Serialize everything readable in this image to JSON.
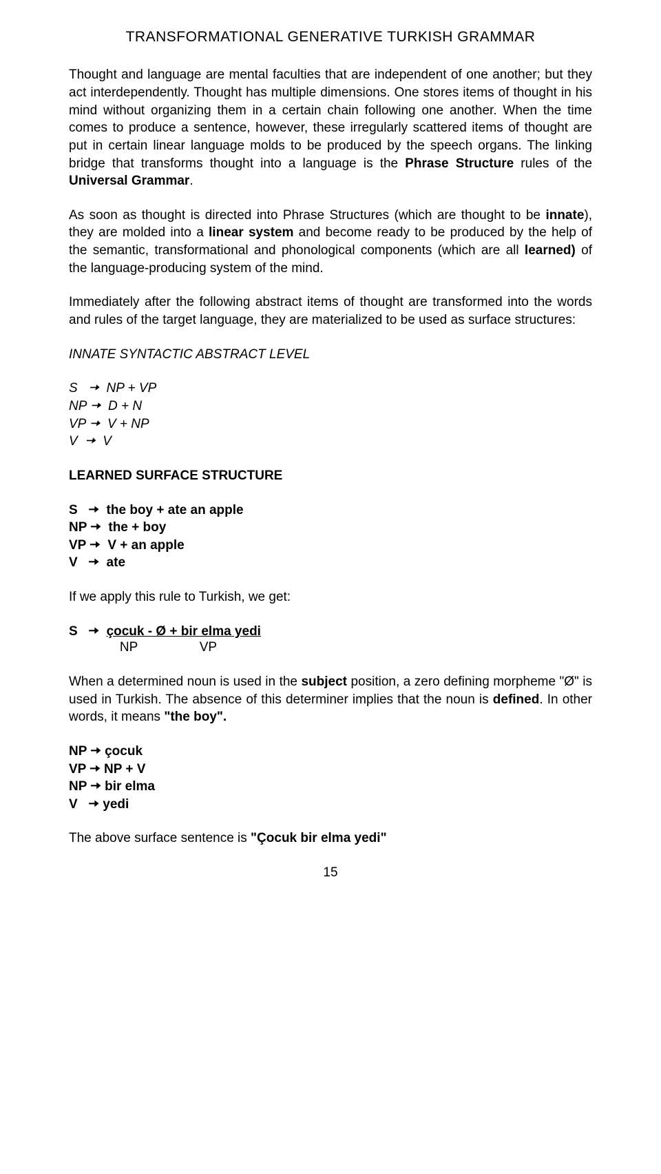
{
  "title": "TRANSFORMATIONAL GENERATIVE TURKISH GRAMMAR",
  "para1_a": "Thought and language are mental faculties that are independent of one another; but they act interdependently. Thought has multiple dimensions. One stores items of thought in his mind without organizing them in a certain chain following one another. When the time comes to produce a sentence, however, these irregularly scattered items of thought are put in certain linear language molds to be produced by the speech organs. The linking bridge that transforms thought into a language is the ",
  "para1_b": "Phrase Structure",
  "para1_c": " rules of the ",
  "para1_d": "Universal Grammar",
  "para1_e": ".",
  "para2_a": "As soon as thought is directed into Phrase Structures (which are thought to be ",
  "para2_b": "innate",
  "para2_c": "), they are molded into a ",
  "para2_d": "linear system",
  "para2_e": " and become ready to be produced by the help of the semantic, transformational and phonological components (which are all ",
  "para2_f": "learned)",
  "para2_g": " of the language-producing system of the mind.",
  "para3": "Immediately after the following abstract items of thought are transformed into the words and rules of the target language, they are materialized to be used as surface structures:",
  "innate_head": "INNATE SYNTACTIC ABSTRACT LEVEL",
  "innate_rules": {
    "r1": "S   🠆  NP + VP",
    "r2": "NP 🠆  D + N",
    "r3": "VP 🠆  V + NP",
    "r4": "V  🠆  V"
  },
  "learned_head": "LEARNED SURFACE STRUCTURE",
  "learned_rules": {
    "r1": "S   🠆  the boy + ate an apple",
    "r2": "NP 🠆  the + boy",
    "r3": "VP 🠆  V + an apple",
    "r4": "V   🠆  ate"
  },
  "apply_line": "If we apply this rule to Turkish, we get:",
  "turkish_rule_prefix": "S   🠆  ",
  "turkish_rule_underlined": "çocuk - Ø + bir elma yedi",
  "turkish_sub": "              NP                 VP",
  "para4_a": "When a determined noun is used in the ",
  "para4_b": "subject",
  "para4_c": " position, a zero  defining morpheme \"Ø\" is used in Turkish. The absence of this determiner implies that the noun is ",
  "para4_d": "defined",
  "para4_e": ". In other words, it  means ",
  "para4_f": "\"the boy\".",
  "final_rules": {
    "r1": "NP 🠆 çocuk",
    "r2": "VP 🠆 NP + V",
    "r3": "NP 🠆 bir elma",
    "r4": "V   🠆 yedi"
  },
  "closing_a": "The above surface sentence is  ",
  "closing_b": "\"Çocuk bir elma yedi\"",
  "page_number": "15"
}
